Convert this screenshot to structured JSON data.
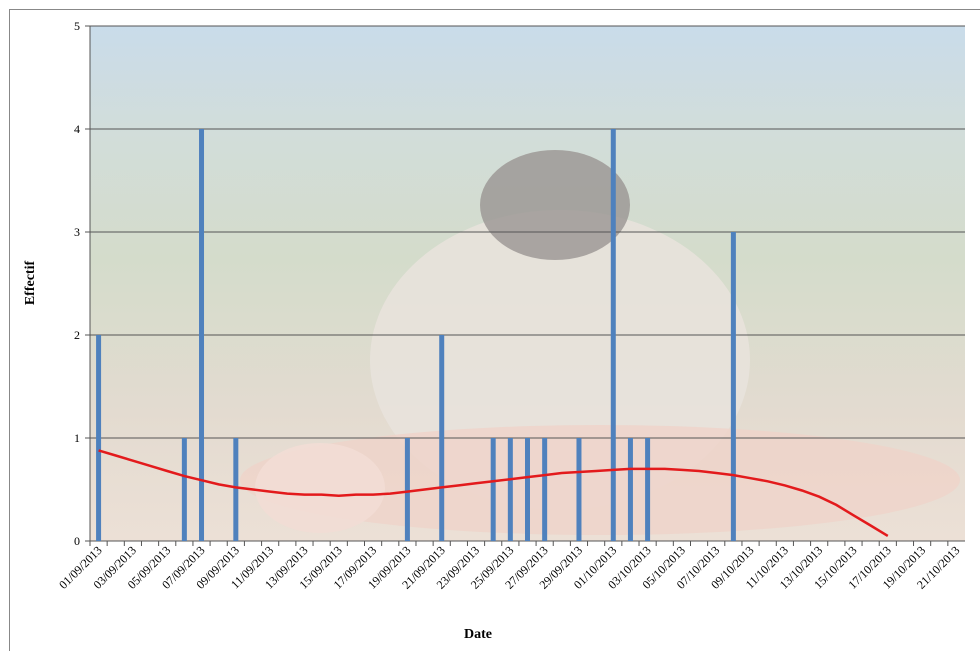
{
  "chart_data": {
    "type": "bar",
    "y_label": "Effectif",
    "x_label": "Date",
    "categories": [
      "01/09/2013",
      null,
      "03/09/2013",
      null,
      "05/09/2013",
      null,
      "07/09/2013",
      null,
      "09/09/2013",
      null,
      "11/09/2013",
      null,
      "13/09/2013",
      null,
      "15/09/2013",
      null,
      "17/09/2013",
      null,
      "19/09/2013",
      null,
      "21/09/2013",
      null,
      "23/09/2013",
      null,
      "25/09/2013",
      null,
      "27/09/2013",
      null,
      "29/09/2013",
      null,
      "01/10/2013",
      null,
      "03/10/2013",
      null,
      "05/10/2013",
      null,
      "07/10/2013",
      null,
      "09/10/2013",
      null,
      "11/10/2013",
      null,
      "13/10/2013",
      null,
      "15/10/2013",
      null,
      "17/10/2013",
      null,
      "19/10/2013",
      null,
      "21/10/2013"
    ],
    "series": [
      {
        "type": "bar",
        "color": "#4f81bd",
        "values": [
          2,
          null,
          null,
          null,
          null,
          1,
          4,
          null,
          1,
          null,
          null,
          null,
          null,
          null,
          null,
          null,
          null,
          null,
          1,
          null,
          2,
          null,
          null,
          1,
          1,
          1,
          1,
          null,
          1,
          null,
          4,
          1,
          1,
          null,
          null,
          null,
          null,
          3,
          null,
          null,
          null,
          null,
          null,
          null,
          null,
          null,
          null,
          null,
          null,
          null,
          null
        ]
      },
      {
        "type": "line",
        "color": "#e31a1c",
        "values": [
          0.88,
          0.83,
          0.78,
          0.73,
          0.68,
          0.63,
          0.59,
          0.55,
          0.52,
          0.5,
          0.48,
          0.46,
          0.45,
          0.45,
          0.44,
          0.45,
          0.45,
          0.46,
          0.48,
          0.5,
          0.52,
          0.54,
          0.56,
          0.58,
          0.6,
          0.62,
          0.64,
          0.66,
          0.67,
          0.68,
          0.69,
          0.7,
          0.7,
          0.7,
          0.69,
          0.68,
          0.66,
          0.64,
          0.61,
          0.58,
          0.54,
          0.49,
          0.43,
          0.35,
          0.25,
          0.15,
          0.05,
          null,
          null,
          null,
          null
        ]
      }
    ],
    "ylim": [
      0,
      5
    ],
    "yticks": [
      0,
      1,
      2,
      3,
      4,
      5
    ],
    "grid": true
  }
}
